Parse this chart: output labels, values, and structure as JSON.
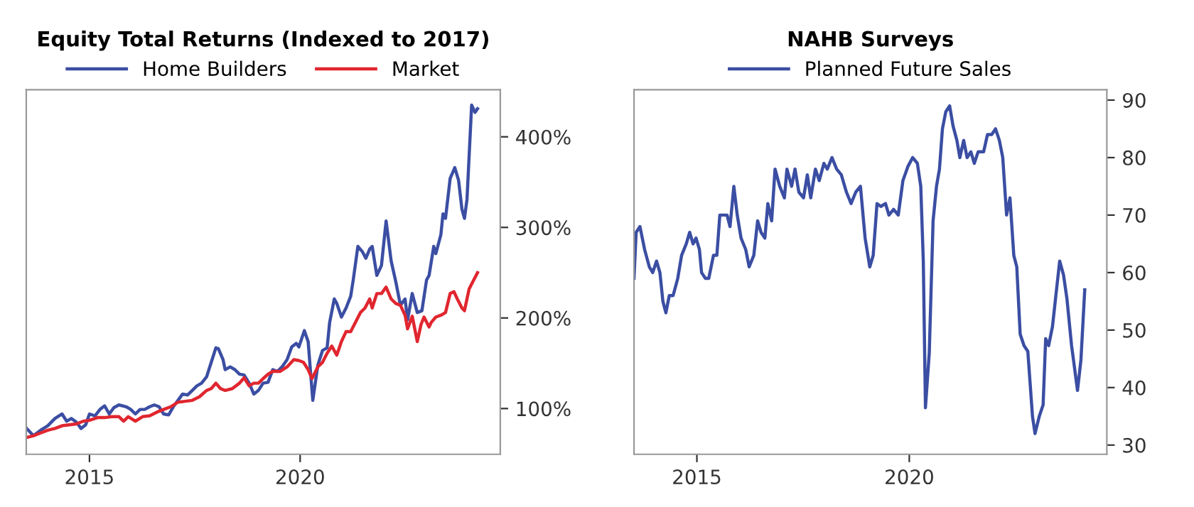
{
  "chart_data": [
    {
      "type": "line",
      "title": "Equity Total Returns (Indexed to 2017)",
      "legend": "top",
      "grid": false,
      "marker": "none",
      "line_style": "solid",
      "xlim": [
        2013.5,
        2024.75
      ],
      "xticks": [
        2015,
        2020
      ],
      "ylim": [
        49.5,
        452
      ],
      "yticks": [
        {
          "value": 100,
          "label": "100%"
        },
        {
          "value": 200,
          "label": "200%"
        },
        {
          "value": 300,
          "label": "300%"
        },
        {
          "value": 400,
          "label": "400%"
        }
      ],
      "series": [
        {
          "name": "Home Builders",
          "color": "#3b4ea3",
          "x": [
            2013.51,
            2013.67,
            2013.84,
            2014.01,
            2014.18,
            2014.35,
            2014.46,
            2014.57,
            2014.69,
            2014.8,
            2014.91,
            2015.0,
            2015.13,
            2015.25,
            2015.36,
            2015.47,
            2015.58,
            2015.7,
            2015.87,
            2015.98,
            2016.09,
            2016.2,
            2016.31,
            2016.43,
            2016.54,
            2016.65,
            2016.76,
            2016.88,
            2016.99,
            2017.1,
            2017.21,
            2017.33,
            2017.44,
            2017.55,
            2017.66,
            2017.78,
            2017.89,
            2018.0,
            2018.06,
            2018.17,
            2018.22,
            2018.34,
            2018.45,
            2018.56,
            2018.67,
            2018.79,
            2018.9,
            2019.01,
            2019.12,
            2019.24,
            2019.35,
            2019.46,
            2019.57,
            2019.69,
            2019.8,
            2019.91,
            2019.97,
            2020.1,
            2020.19,
            2020.3,
            2020.42,
            2020.53,
            2020.64,
            2020.7,
            2020.81,
            2020.87,
            2020.98,
            2021.09,
            2021.2,
            2021.26,
            2021.37,
            2021.48,
            2021.56,
            2021.65,
            2021.71,
            2021.82,
            2021.93,
            2022.04,
            2022.16,
            2022.27,
            2022.38,
            2022.49,
            2022.55,
            2022.66,
            2022.78,
            2022.89,
            2023.0,
            2023.06,
            2023.17,
            2023.22,
            2023.34,
            2023.39,
            2023.45,
            2023.56,
            2023.67,
            2023.76,
            2023.84,
            2023.9,
            2023.96,
            2024.07,
            2024.15,
            2024.21
          ],
          "values": [
            78,
            70,
            76,
            81,
            89,
            94,
            86,
            89,
            85,
            78,
            82,
            94,
            92,
            99,
            103,
            94,
            101,
            104,
            102,
            99,
            94,
            99,
            99,
            102,
            104,
            102,
            94,
            93,
            102,
            109,
            116,
            115,
            120,
            125,
            128,
            135,
            151,
            167,
            166,
            154,
            143,
            146,
            143,
            138,
            137,
            128,
            116,
            120,
            128,
            129,
            143,
            141,
            146,
            154,
            168,
            172,
            168,
            186,
            174,
            109,
            148,
            164,
            167,
            195,
            221,
            216,
            201,
            211,
            224,
            242,
            279,
            273,
            266,
            276,
            279,
            247,
            258,
            307,
            263,
            240,
            214,
            221,
            198,
            227,
            206,
            208,
            242,
            247,
            279,
            271,
            292,
            315,
            310,
            354,
            366,
            352,
            320,
            310,
            331,
            435,
            427,
            431
          ]
        },
        {
          "name": "Market",
          "color": "#e0262f",
          "x": [
            2013.51,
            2013.67,
            2013.84,
            2014.01,
            2014.18,
            2014.35,
            2014.52,
            2014.69,
            2014.85,
            2015.0,
            2015.19,
            2015.36,
            2015.53,
            2015.7,
            2015.81,
            2015.92,
            2016.09,
            2016.26,
            2016.43,
            2016.6,
            2016.76,
            2016.93,
            2017.1,
            2017.27,
            2017.44,
            2017.61,
            2017.78,
            2017.89,
            2018.0,
            2018.11,
            2018.22,
            2018.39,
            2018.56,
            2018.67,
            2018.79,
            2018.9,
            2019.01,
            2019.12,
            2019.24,
            2019.35,
            2019.52,
            2019.69,
            2019.85,
            2019.97,
            2020.08,
            2020.19,
            2020.28,
            2020.42,
            2020.53,
            2020.64,
            2020.75,
            2020.87,
            2020.98,
            2021.09,
            2021.2,
            2021.31,
            2021.43,
            2021.54,
            2021.65,
            2021.71,
            2021.82,
            2021.93,
            2022.04,
            2022.16,
            2022.27,
            2022.38,
            2022.49,
            2022.55,
            2022.66,
            2022.78,
            2022.87,
            2022.94,
            2023.06,
            2023.11,
            2023.22,
            2023.34,
            2023.45,
            2023.56,
            2023.65,
            2023.73,
            2023.84,
            2023.9,
            2024.01,
            2024.12,
            2024.21
          ],
          "values": [
            68,
            70,
            73,
            76,
            78,
            81,
            82,
            83,
            86,
            87,
            90,
            90,
            91,
            91,
            86,
            91,
            86,
            91,
            92,
            96,
            99,
            102,
            107,
            108,
            109,
            113,
            120,
            122,
            128,
            122,
            120,
            122,
            128,
            134,
            125,
            128,
            128,
            133,
            138,
            141,
            141,
            146,
            154,
            153,
            151,
            143,
            133,
            146,
            151,
            161,
            169,
            159,
            174,
            185,
            185,
            195,
            206,
            211,
            221,
            211,
            227,
            227,
            234,
            221,
            216,
            214,
            203,
            188,
            202,
            174,
            193,
            201,
            190,
            195,
            201,
            203,
            206,
            227,
            229,
            221,
            211,
            208,
            232,
            242,
            250
          ]
        }
      ]
    },
    {
      "type": "line",
      "title": "NAHB Surveys",
      "legend": "top",
      "grid": false,
      "marker": "none",
      "line_style": "solid",
      "xlim": [
        2013.52,
        2024.65
      ],
      "xticks": [
        2015,
        2020
      ],
      "ylim": [
        28.4,
        91.8
      ],
      "yticks": [
        30,
        40,
        50,
        60,
        70,
        80,
        90
      ],
      "series": [
        {
          "name": "Planned Future Sales",
          "color": "#3b4ea3",
          "x": [
            2013.52,
            2013.57,
            2013.66,
            2013.77,
            2013.88,
            2013.96,
            2014.05,
            2014.13,
            2014.2,
            2014.27,
            2014.35,
            2014.44,
            2014.55,
            2014.64,
            2014.75,
            2014.83,
            2014.91,
            2014.98,
            2015.06,
            2015.11,
            2015.2,
            2015.28,
            2015.39,
            2015.47,
            2015.54,
            2015.63,
            2015.71,
            2015.78,
            2015.87,
            2015.95,
            2016.04,
            2016.15,
            2016.23,
            2016.34,
            2016.43,
            2016.51,
            2016.6,
            2016.67,
            2016.76,
            2016.84,
            2016.95,
            2017.06,
            2017.12,
            2017.23,
            2017.31,
            2017.4,
            2017.51,
            2017.6,
            2017.68,
            2017.79,
            2017.88,
            2017.99,
            2018.07,
            2018.18,
            2018.29,
            2018.4,
            2018.52,
            2018.63,
            2018.74,
            2018.85,
            2018.96,
            2019.07,
            2019.15,
            2019.24,
            2019.33,
            2019.44,
            2019.52,
            2019.63,
            2019.74,
            2019.85,
            2019.97,
            2020.08,
            2020.19,
            2020.27,
            2020.33,
            2020.38,
            2020.47,
            2020.56,
            2020.64,
            2020.71,
            2020.78,
            2020.86,
            2020.95,
            2021.03,
            2021.12,
            2021.19,
            2021.28,
            2021.36,
            2021.45,
            2021.53,
            2021.62,
            2021.75,
            2021.84,
            2021.94,
            2022.03,
            2022.12,
            2022.2,
            2022.29,
            2022.37,
            2022.46,
            2022.53,
            2022.61,
            2022.7,
            2022.79,
            2022.9,
            2022.96,
            2023.06,
            2023.15,
            2023.21,
            2023.28,
            2023.37,
            2023.45,
            2023.54,
            2023.63,
            2023.71,
            2023.82,
            2023.96,
            2024.04,
            2024.13
          ],
          "values": [
            59,
            67,
            68,
            64,
            61,
            60,
            62,
            60,
            55,
            53,
            56,
            56,
            59,
            63,
            65,
            67,
            65,
            66,
            64,
            60,
            59,
            59,
            63,
            63,
            70,
            70,
            70,
            68,
            75,
            70,
            66,
            64,
            61,
            63,
            69,
            67,
            66,
            72,
            69,
            78,
            75,
            73,
            78,
            75,
            78,
            74,
            73,
            77,
            73,
            78,
            76,
            79,
            78,
            80,
            78,
            77,
            74,
            72,
            74,
            75,
            66,
            61,
            63,
            72,
            71.5,
            72,
            70,
            71,
            70,
            76,
            78.5,
            80,
            79,
            75,
            62,
            36.5,
            46,
            69,
            75,
            78,
            85,
            88,
            89,
            85.5,
            83,
            80,
            83,
            80,
            81,
            79,
            81,
            81,
            84,
            84,
            85,
            83,
            80,
            70,
            73,
            63,
            61,
            49.3,
            47.3,
            46.3,
            35,
            32,
            35,
            37,
            48.5,
            47.3,
            50.6,
            56,
            62,
            59.6,
            55.5,
            47.3,
            39.5,
            44.8,
            57
          ]
        }
      ]
    }
  ]
}
